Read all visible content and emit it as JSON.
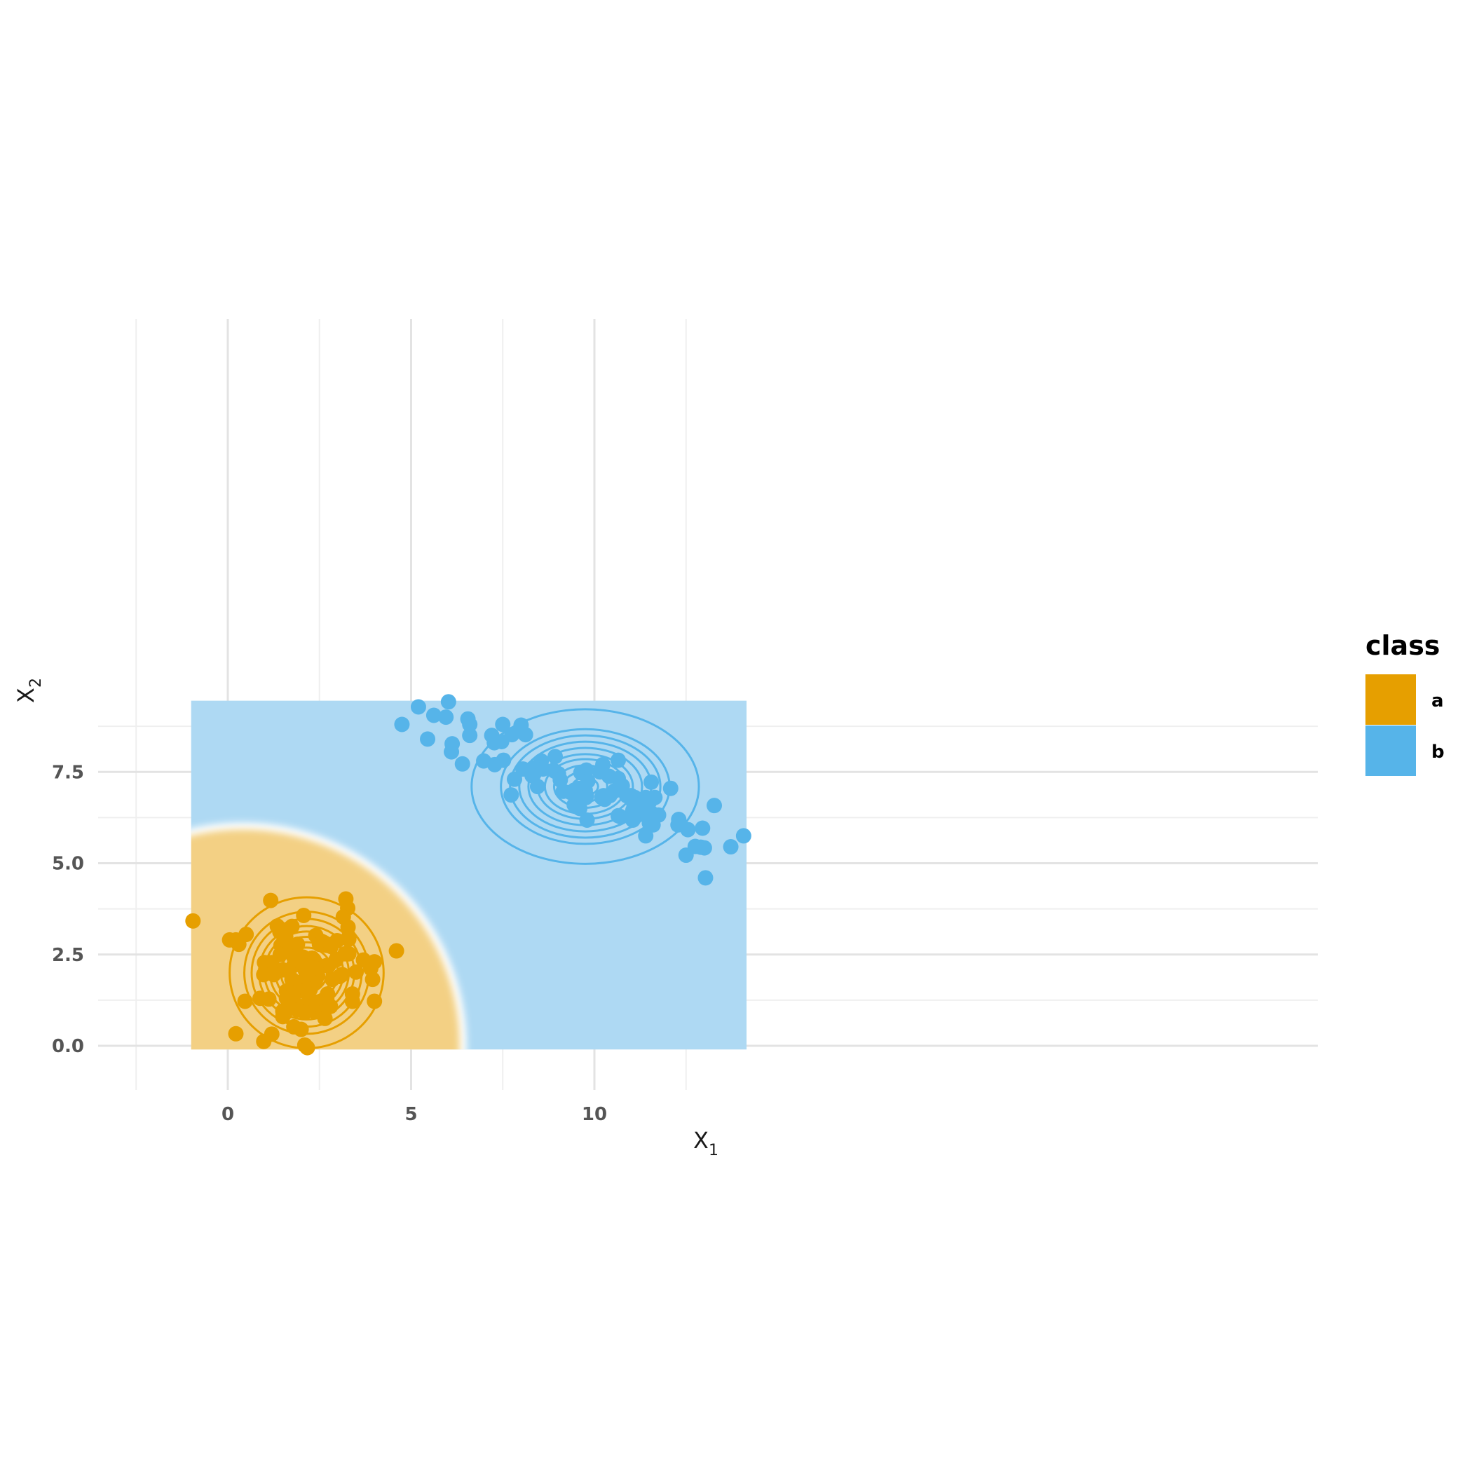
{
  "chart_data": {
    "type": "scatter",
    "xlabel": {
      "main": "X",
      "sub": "1"
    },
    "ylabel": {
      "main": "X",
      "sub": "2"
    },
    "xlim": [
      -2.1,
      14.8
    ],
    "ylim": [
      -0.55,
      9.5
    ],
    "xticks": [
      {
        "value": 0,
        "label": "0"
      },
      {
        "value": 5,
        "label": "5"
      },
      {
        "value": 10,
        "label": "10"
      }
    ],
    "yticks": [
      {
        "value": 0,
        "label": "0.0"
      },
      {
        "value": 2.5,
        "label": "2.5"
      },
      {
        "value": 5,
        "label": "5.0"
      },
      {
        "value": 7.5,
        "label": "7.5"
      }
    ],
    "grid": true,
    "legend_position": "right",
    "legend": {
      "title": "class",
      "entries": [
        {
          "label": "a",
          "color": "#E69F00"
        },
        {
          "label": "b",
          "color": "#56B4E9"
        }
      ]
    },
    "region": {
      "x_range": [
        -1.0,
        14.15
      ],
      "y_range": [
        -0.1,
        9.45
      ],
      "class_a_fill": "#F3D084",
      "class_b_fill": "#AED9F3",
      "boundary_center": [
        0.4,
        0.0
      ],
      "boundary_radius": 6.0
    },
    "series": [
      {
        "name": "a",
        "color": "#E69F00",
        "contour_center": [
          2.15,
          2.0
        ],
        "contour_radii": [
          0.35,
          0.55,
          0.7,
          0.85,
          1.0,
          1.15,
          1.3,
          1.5,
          1.7,
          2.1
        ],
        "contour_ry_scale": 0.98,
        "points": [
          [
            -0.95,
            3.42
          ],
          [
            0.05,
            2.9
          ],
          [
            0.22,
            2.9
          ],
          [
            0.3,
            2.78
          ],
          [
            0.5,
            3.05
          ],
          [
            1.17,
            3.98
          ],
          [
            3.22,
            4.02
          ],
          [
            3.27,
            3.77
          ],
          [
            3.15,
            3.53
          ],
          [
            3.28,
            3.25
          ],
          [
            2.07,
            3.57
          ],
          [
            1.35,
            3.28
          ],
          [
            1.75,
            3.27
          ],
          [
            1.42,
            3.12
          ],
          [
            1.58,
            2.98
          ],
          [
            3.3,
            2.98
          ],
          [
            3.3,
            2.92
          ],
          [
            2.4,
            3.02
          ],
          [
            2.98,
            2.88
          ],
          [
            2.55,
            2.85
          ],
          [
            2.7,
            2.75
          ],
          [
            2.5,
            2.78
          ],
          [
            1.45,
            2.75
          ],
          [
            1.65,
            2.72
          ],
          [
            1.85,
            2.72
          ],
          [
            1.9,
            2.78
          ],
          [
            2.82,
            2.72
          ],
          [
            3.2,
            2.52
          ],
          [
            3.3,
            2.52
          ],
          [
            1.43,
            2.5
          ],
          [
            1.8,
            2.43
          ],
          [
            2.05,
            2.43
          ],
          [
            2.3,
            2.4
          ],
          [
            2.35,
            2.35
          ],
          [
            2.95,
            2.35
          ],
          [
            3.7,
            2.35
          ],
          [
            4.6,
            2.6
          ],
          [
            4.0,
            2.3
          ],
          [
            1.0,
            2.28
          ],
          [
            1.2,
            2.28
          ],
          [
            1.8,
            2.2
          ],
          [
            2.05,
            2.2
          ],
          [
            2.25,
            2.2
          ],
          [
            2.7,
            2.2
          ],
          [
            2.75,
            2.2
          ],
          [
            3.9,
            2.12
          ],
          [
            1.15,
            2.1
          ],
          [
            1.5,
            2.08
          ],
          [
            1.65,
            2.05
          ],
          [
            2.12,
            2.05
          ],
          [
            2.4,
            2.12
          ],
          [
            3.5,
            2.02
          ],
          [
            0.98,
            1.95
          ],
          [
            1.25,
            1.95
          ],
          [
            3.12,
            1.95
          ],
          [
            3.05,
            1.9
          ],
          [
            2.45,
            1.92
          ],
          [
            2.4,
            1.82
          ],
          [
            2.02,
            1.75
          ],
          [
            1.75,
            1.82
          ],
          [
            1.85,
            1.72
          ],
          [
            2.38,
            1.72
          ],
          [
            2.85,
            1.82
          ],
          [
            3.95,
            1.82
          ],
          [
            2.0,
            1.65
          ],
          [
            2.2,
            1.62
          ],
          [
            2.25,
            1.55
          ],
          [
            1.6,
            1.5
          ],
          [
            1.95,
            1.5
          ],
          [
            2.18,
            1.42
          ],
          [
            2.72,
            1.42
          ],
          [
            3.4,
            1.42
          ],
          [
            0.88,
            1.3
          ],
          [
            1.12,
            1.28
          ],
          [
            1.6,
            1.3
          ],
          [
            1.8,
            1.2
          ],
          [
            2.45,
            1.2
          ],
          [
            2.7,
            1.28
          ],
          [
            3.4,
            1.22
          ],
          [
            4.0,
            1.22
          ],
          [
            0.47,
            1.22
          ],
          [
            2.8,
            1.08
          ],
          [
            2.02,
            1.02
          ],
          [
            2.1,
            1.1
          ],
          [
            1.9,
            0.98
          ],
          [
            2.35,
            0.95
          ],
          [
            2.1,
            0.92
          ],
          [
            2.6,
            0.92
          ],
          [
            1.5,
            0.95
          ],
          [
            1.55,
            0.88
          ],
          [
            1.5,
            0.8
          ],
          [
            2.65,
            0.75
          ],
          [
            1.8,
            0.52
          ],
          [
            2.0,
            0.45
          ],
          [
            0.22,
            0.33
          ],
          [
            1.2,
            0.32
          ],
          [
            0.98,
            0.12
          ],
          [
            2.1,
            0.02
          ],
          [
            2.17,
            -0.05
          ]
        ]
      },
      {
        "name": "b",
        "color": "#56B4E9",
        "contour_center": [
          9.75,
          7.1
        ],
        "contour_radii": [
          0.35,
          0.6,
          0.85,
          1.1,
          1.3,
          1.55,
          1.8,
          2.05,
          2.3,
          3.1
        ],
        "contour_ry_scale": 0.68,
        "points": [
          [
            6.02,
            9.42
          ],
          [
            5.2,
            9.28
          ],
          [
            5.62,
            9.05
          ],
          [
            5.95,
            9.0
          ],
          [
            6.55,
            8.95
          ],
          [
            6.6,
            8.8
          ],
          [
            4.75,
            8.8
          ],
          [
            7.5,
            8.8
          ],
          [
            8.0,
            8.78
          ],
          [
            7.2,
            8.5
          ],
          [
            6.6,
            8.5
          ],
          [
            7.75,
            8.52
          ],
          [
            8.12,
            8.52
          ],
          [
            5.45,
            8.4
          ],
          [
            7.47,
            8.33
          ],
          [
            7.27,
            8.3
          ],
          [
            6.12,
            8.27
          ],
          [
            6.1,
            8.05
          ],
          [
            6.98,
            7.8
          ],
          [
            7.52,
            7.82
          ],
          [
            8.93,
            7.92
          ],
          [
            8.55,
            7.8
          ],
          [
            10.65,
            7.82
          ],
          [
            6.4,
            7.72
          ],
          [
            7.28,
            7.7
          ],
          [
            10.23,
            7.7
          ],
          [
            8.05,
            7.58
          ],
          [
            8.32,
            7.6
          ],
          [
            8.6,
            7.58
          ],
          [
            9.78,
            7.55
          ],
          [
            9.63,
            7.48
          ],
          [
            10.15,
            7.5
          ],
          [
            8.92,
            7.52
          ],
          [
            9.02,
            7.45
          ],
          [
            8.3,
            7.4
          ],
          [
            10.4,
            7.38
          ],
          [
            10.65,
            7.32
          ],
          [
            7.82,
            7.3
          ],
          [
            9.07,
            7.28
          ],
          [
            9.82,
            7.25
          ],
          [
            11.55,
            7.22
          ],
          [
            10.72,
            7.15
          ],
          [
            10.76,
            7.12
          ],
          [
            8.45,
            7.1
          ],
          [
            12.08,
            7.05
          ],
          [
            9.58,
            7.05
          ],
          [
            9.75,
            7.0
          ],
          [
            9.72,
            6.92
          ],
          [
            9.45,
            7.0
          ],
          [
            9.15,
            6.97
          ],
          [
            9.35,
            6.94
          ],
          [
            9.65,
            6.92
          ],
          [
            9.78,
            6.85
          ],
          [
            10.55,
            6.98
          ],
          [
            9.77,
            6.8
          ],
          [
            10.25,
            6.85
          ],
          [
            10.42,
            6.85
          ],
          [
            10.88,
            6.85
          ],
          [
            11.0,
            6.85
          ],
          [
            10.2,
            6.8
          ],
          [
            7.73,
            6.87
          ],
          [
            11.1,
            6.8
          ],
          [
            11.4,
            6.8
          ],
          [
            11.65,
            6.8
          ],
          [
            10.28,
            6.75
          ],
          [
            11.27,
            6.72
          ],
          [
            11.52,
            6.72
          ],
          [
            11.07,
            6.65
          ],
          [
            11.22,
            6.6
          ],
          [
            9.45,
            6.6
          ],
          [
            9.6,
            6.5
          ],
          [
            11.05,
            6.45
          ],
          [
            11.55,
            6.38
          ],
          [
            11.3,
            6.35
          ],
          [
            11.75,
            6.32
          ],
          [
            10.65,
            6.3
          ],
          [
            10.7,
            6.28
          ],
          [
            11.05,
            6.25
          ],
          [
            9.8,
            6.18
          ],
          [
            11.05,
            6.18
          ],
          [
            11.5,
            6.1
          ],
          [
            11.6,
            6.05
          ],
          [
            12.3,
            6.2
          ],
          [
            12.28,
            6.05
          ],
          [
            13.27,
            6.58
          ],
          [
            12.55,
            5.92
          ],
          [
            12.95,
            5.96
          ],
          [
            11.4,
            5.75
          ],
          [
            14.07,
            5.75
          ],
          [
            12.75,
            5.46
          ],
          [
            12.9,
            5.44
          ],
          [
            13.0,
            5.42
          ],
          [
            13.72,
            5.45
          ],
          [
            12.5,
            5.22
          ],
          [
            13.03,
            4.6
          ]
        ]
      }
    ]
  }
}
